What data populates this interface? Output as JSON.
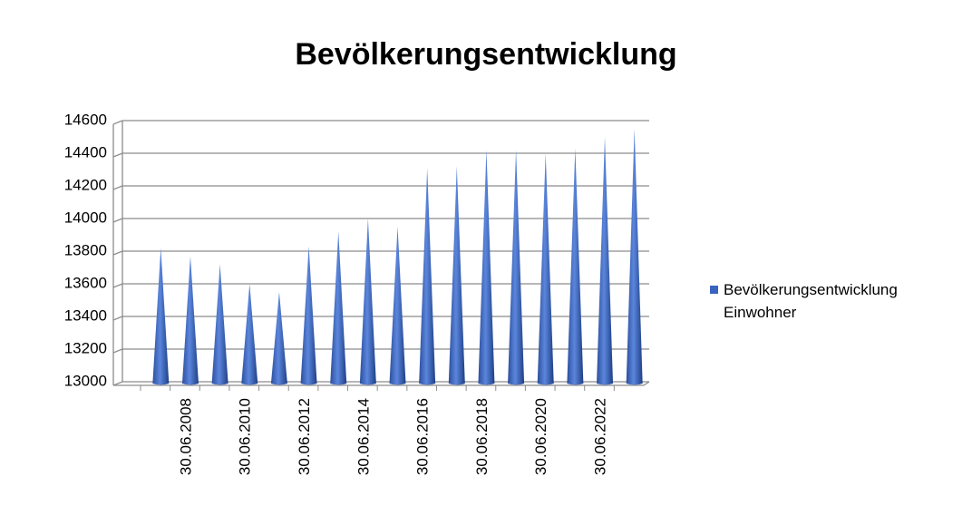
{
  "chart_data": {
    "type": "bar",
    "title": "Bevölkerungsentwicklung",
    "categories": [
      null,
      "30.06.2008",
      null,
      "30.06.2010",
      null,
      "30.06.2012",
      null,
      "30.06.2014",
      null,
      "30.06.2016",
      null,
      "30.06.2018",
      null,
      "30.06.2020",
      null,
      "30.06.2022",
      null
    ],
    "series": [
      {
        "name": "Bevölkerungsentwicklung Einwohner",
        "color": "#3a62c0",
        "values": [
          13820,
          13770,
          13720,
          13600,
          13550,
          13830,
          13920,
          14000,
          13950,
          14310,
          14320,
          14420,
          14420,
          14400,
          14430,
          14500,
          14550
        ]
      }
    ],
    "ylim": [
      13000,
      14600
    ],
    "yticks": [
      13000,
      13200,
      13400,
      13600,
      13800,
      14000,
      14200,
      14400,
      14600
    ],
    "grid": true
  }
}
